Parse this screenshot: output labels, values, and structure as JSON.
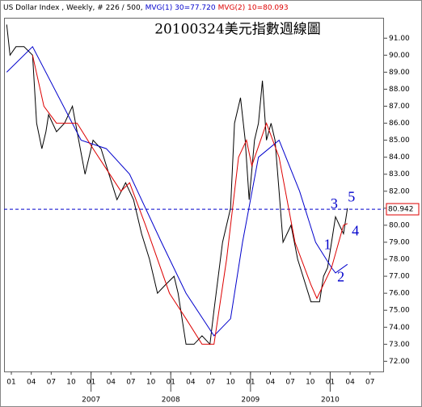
{
  "chart_data": {
    "type": "line",
    "subtitle": "US Dollar Index , Weekly, # 226 / 500,",
    "title": "20100324美元指數週線圖",
    "series": [
      {
        "color": "#000000",
        "x": [
          -0.7,
          -0.2,
          0.7,
          1.9,
          3.2,
          3.8,
          4.6,
          5.2,
          5.6,
          6.8,
          8.0,
          9.2,
          9.9,
          11.1,
          12.3,
          13.5,
          14.7,
          15.9,
          17.2,
          18.4,
          19.6,
          20.8,
          22.0,
          23.2,
          24.5,
          25.1,
          26.3,
          27.5,
          28.7,
          29.9,
          30.5,
          31.8,
          33.0,
          33.6,
          34.5,
          35.2,
          35.8,
          36.6,
          37.2,
          37.8,
          38.4,
          39.1,
          39.7,
          40.3,
          40.9,
          42.1,
          43.1,
          43.9,
          45.1,
          46.4,
          47.0,
          47.6,
          48.2,
          48.8,
          49.4,
          50.0,
          50.6
        ],
        "values": [
          91.8,
          90,
          90.5,
          90.5,
          90,
          86,
          84.5,
          85.5,
          86.5,
          85.5,
          86,
          87,
          85.5,
          83,
          85,
          84.5,
          83,
          81.5,
          82.5,
          81.5,
          79.5,
          78,
          76,
          76.5,
          77,
          76,
          73,
          73,
          73.5,
          73,
          75,
          79,
          81,
          86,
          87.5,
          85,
          81.5,
          85,
          86,
          88.5,
          85,
          86,
          85,
          82,
          79,
          80,
          78,
          77,
          75.5,
          75.5,
          77,
          77.5,
          79,
          80.5,
          80,
          79.5,
          81
        ]
      },
      {
        "name": "MVG(1) 30=77.720",
        "color": "#0000cc",
        "x": [
          -0.7,
          3.2,
          10.5,
          14.3,
          17.8,
          22.6,
          26.3,
          30.5,
          33.0,
          34.8,
          37.2,
          40.3,
          43.4,
          45.8,
          48.2,
          48.8,
          50.6
        ],
        "values": [
          89,
          90.5,
          85,
          84.5,
          83,
          79,
          76,
          73.5,
          74.5,
          79,
          84,
          85,
          82,
          79,
          77.5,
          77.2,
          77.7
        ]
      },
      {
        "name": "MVG(2) 10=80.093",
        "color": "#dd0000",
        "x": [
          3.2,
          4.9,
          6.8,
          9.9,
          12.3,
          16.5,
          17.8,
          20.2,
          23.8,
          26.3,
          28.7,
          30.5,
          32.4,
          34.2,
          35.4,
          36.2,
          38.4,
          40.3,
          42.7,
          45.1,
          46.0,
          48.2,
          50.0,
          50.6
        ],
        "values": [
          90,
          87,
          86,
          86,
          84.5,
          82,
          82.5,
          80,
          76,
          74.5,
          73,
          73,
          78,
          84,
          85,
          83.5,
          86,
          84,
          79,
          76.5,
          75.7,
          77.5,
          80,
          80.1
        ]
      }
    ],
    "last_value": 80.942,
    "annotations": [
      {
        "text": "1",
        "x": 47.6,
        "y": 78.8
      },
      {
        "text": "2",
        "x": 49.6,
        "y": 76.9
      },
      {
        "text": "3",
        "x": 48.6,
        "y": 81.2
      },
      {
        "text": "4",
        "x": 51.8,
        "y": 79.6
      },
      {
        "text": "5",
        "x": 51.2,
        "y": 81.6
      }
    ],
    "xlim": [
      -1.1,
      56.1
    ],
    "xticks": [
      {
        "value": 0,
        "label": "01"
      },
      {
        "value": 3,
        "label": "04"
      },
      {
        "value": 6,
        "label": "07"
      },
      {
        "value": 9,
        "label": "10"
      },
      {
        "value": 12,
        "label": "01"
      },
      {
        "value": 15,
        "label": "04"
      },
      {
        "value": 18,
        "label": "07"
      },
      {
        "value": 21,
        "label": "10"
      },
      {
        "value": 24,
        "label": "01"
      },
      {
        "value": 27,
        "label": "04"
      },
      {
        "value": 30,
        "label": "07"
      },
      {
        "value": 33,
        "label": "10"
      },
      {
        "value": 36,
        "label": "01"
      },
      {
        "value": 39,
        "label": "04"
      },
      {
        "value": 42,
        "label": "07"
      },
      {
        "value": 45,
        "label": "10"
      },
      {
        "value": 48,
        "label": "01"
      },
      {
        "value": 51,
        "label": "04"
      },
      {
        "value": 54,
        "label": "07"
      }
    ],
    "year_ticks": [
      {
        "value": 12,
        "label": "2007"
      },
      {
        "value": 24,
        "label": "2008"
      },
      {
        "value": 36,
        "label": "2009"
      },
      {
        "value": 48,
        "label": "2010"
      }
    ],
    "ylim": [
      71.4,
      92.2
    ],
    "yticks": [
      {
        "value": 72,
        "label": "72.00"
      },
      {
        "value": 73,
        "label": "73.00"
      },
      {
        "value": 74,
        "label": "74.00"
      },
      {
        "value": 75,
        "label": "75.00"
      },
      {
        "value": 76,
        "label": "76.00"
      },
      {
        "value": 77,
        "label": "77.00"
      },
      {
        "value": 78,
        "label": "78.00"
      },
      {
        "value": 79,
        "label": "79.00"
      },
      {
        "value": 80,
        "label": "80.00"
      },
      {
        "value": 81,
        "label": "81.00"
      },
      {
        "value": 82,
        "label": "82.00"
      },
      {
        "value": 83,
        "label": "83.00"
      },
      {
        "value": 84,
        "label": "84.00"
      },
      {
        "value": 85,
        "label": "85.00"
      },
      {
        "value": 86,
        "label": "86.00"
      },
      {
        "value": 87,
        "label": "87.00"
      },
      {
        "value": 88,
        "label": "88.00"
      },
      {
        "value": 89,
        "label": "89.00"
      },
      {
        "value": 90,
        "label": "90.00"
      },
      {
        "value": 91,
        "label": "91.00"
      }
    ]
  }
}
